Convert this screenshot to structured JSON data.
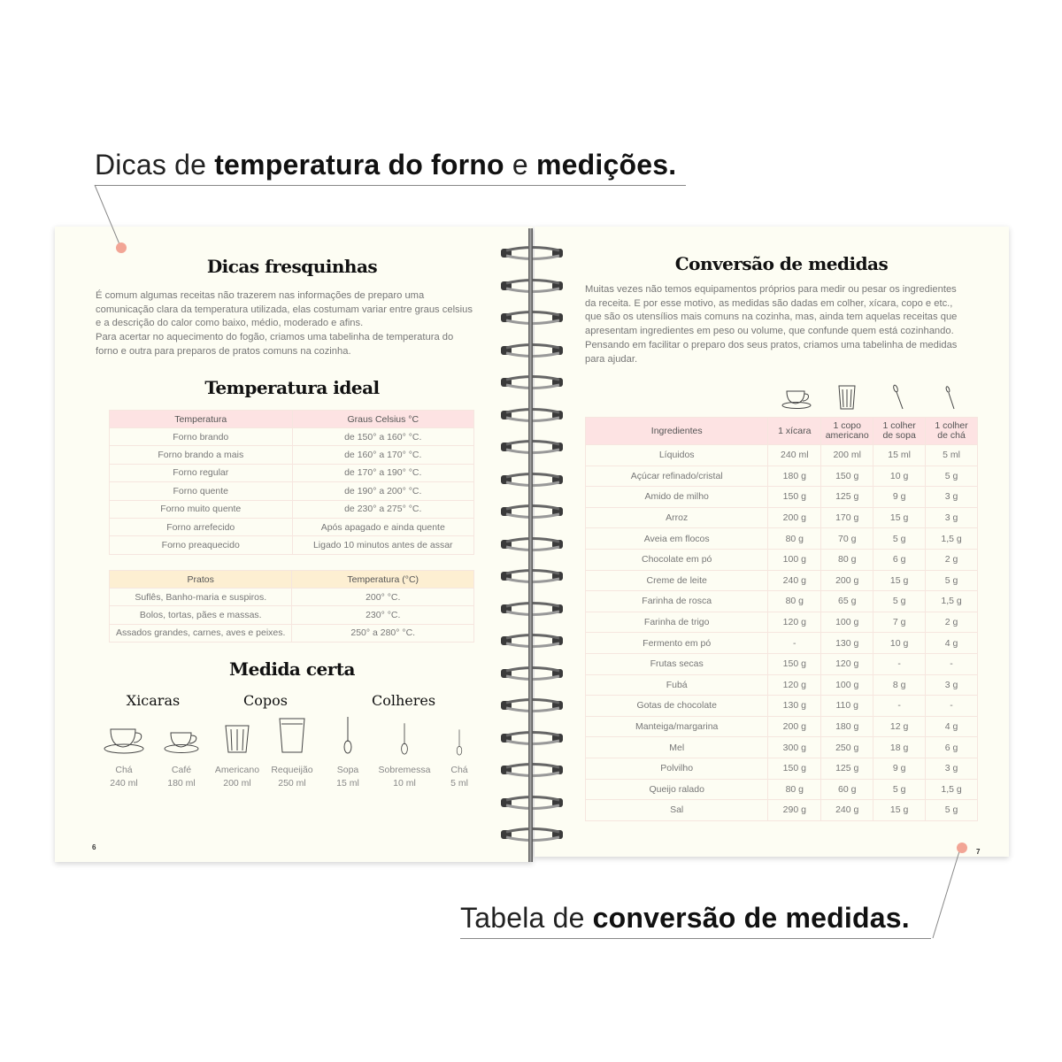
{
  "callouts": {
    "top": {
      "pre": "Dicas de ",
      "b1": "temperatura do forno",
      "mid": " e ",
      "b2": "medições."
    },
    "bottom": {
      "pre": "Tabela de ",
      "b1": "conversão de medidas."
    }
  },
  "colors": {
    "accent_dot": "#f2a595",
    "pink_header": "#fde3e3",
    "yellow_header": "#fdefd2",
    "page": "#fdfdf3"
  },
  "left_page": {
    "title": "Dicas fresquinhas",
    "p1": " É comum algumas receitas não trazerem nas informações de preparo uma comunicação clara da temperatura utilizada, elas costumam variar entre graus celsius e a descrição do calor como baixo, médio, moderado e afins.",
    "p2": " Para acertar no aquecimento do fogão, criamos uma tabelinha de temperatura do forno e outra para preparos de pratos comuns na cozinha.",
    "temp_title": "Temperatura ideal",
    "temp_table": {
      "headers": [
        "Temperatura",
        "Graus Celsius °C"
      ],
      "rows": [
        [
          "Forno brando",
          "de 150° a 160° °C."
        ],
        [
          "Forno brando a mais",
          "de 160° a 170° °C."
        ],
        [
          "Forno regular",
          "de 170° a 190° °C."
        ],
        [
          "Forno quente",
          "de 190° a 200° °C."
        ],
        [
          "Forno muito quente",
          "de 230° a 275° °C."
        ],
        [
          "Forno arrefecido",
          "Após apagado e ainda quente"
        ],
        [
          "Forno preaquecido",
          "Ligado 10 minutos antes de assar"
        ]
      ]
    },
    "dish_table": {
      "headers": [
        "Pratos",
        "Temperatura (°C)"
      ],
      "rows": [
        [
          "Suflês, Banho-maria e suspiros.",
          "200° °C."
        ],
        [
          "Bolos, tortas, pães e massas.",
          "230° °C."
        ],
        [
          "Assados grandes, carnes, aves e peixes.",
          "250° a 280° °C."
        ]
      ]
    },
    "measure_title": "Medida certa",
    "groups": [
      "Xicaras",
      "Copos",
      "Colheres"
    ],
    "items": [
      {
        "icon": "teacup-icon",
        "name": "Chá",
        "value": "240 ml"
      },
      {
        "icon": "coffee-cup-icon",
        "name": "Café",
        "value": "180 ml"
      },
      {
        "icon": "glass-icon",
        "name": "Americano",
        "value": "200 ml"
      },
      {
        "icon": "tall-glass-icon",
        "name": "Requeijão",
        "value": "250 ml"
      },
      {
        "icon": "spoon-icon",
        "name": "Sopa",
        "value": "15 ml"
      },
      {
        "icon": "spoon-icon",
        "name": "Sobremessa",
        "value": "10 ml"
      },
      {
        "icon": "spoon-icon",
        "name": "Chá",
        "value": "5 ml"
      }
    ],
    "page_number": "6"
  },
  "right_page": {
    "title": "Conversão de medidas",
    "p1": " Muitas vezes não temos equipamentos próprios para medir ou pesar os ingredientes da receita. E por esse motivo, as medidas são dadas em colher, xícara, copo e etc., que são os utensílios mais comuns na cozinha, mas, ainda tem aquelas receitas que apresentam ingredientes em peso ou volume, que confunde quem está cozinhando.",
    "p2": "  Pensando em facilitar o preparo dos seus pratos, criamos uma tabelinha de medidas para ajudar.",
    "table": {
      "headers": [
        "Ingredientes",
        "1 xícara",
        "1 copo americano",
        "1 colher de sopa",
        "1 colher de chá"
      ],
      "rows": [
        [
          "Líquidos",
          "240 ml",
          "200 ml",
          "15 ml",
          "5 ml"
        ],
        [
          "Açúcar refinado/cristal",
          "180 g",
          "150 g",
          "10 g",
          "5 g"
        ],
        [
          "Amido de milho",
          "150 g",
          "125 g",
          "9 g",
          "3 g"
        ],
        [
          "Arroz",
          "200 g",
          "170 g",
          "15 g",
          "3 g"
        ],
        [
          "Aveia em flocos",
          "80 g",
          "70 g",
          "5 g",
          "1,5 g"
        ],
        [
          "Chocolate em pó",
          "100 g",
          "80 g",
          "6 g",
          "2 g"
        ],
        [
          "Creme de leite",
          "240 g",
          "200 g",
          "15 g",
          "5 g"
        ],
        [
          "Farinha de rosca",
          "80 g",
          "65 g",
          "5 g",
          "1,5 g"
        ],
        [
          "Farinha de trigo",
          "120 g",
          "100 g",
          "7 g",
          "2 g"
        ],
        [
          "Fermento em pó",
          "-",
          "130 g",
          "10 g",
          "4 g"
        ],
        [
          "Frutas secas",
          "150 g",
          "120 g",
          "-",
          "-"
        ],
        [
          "Fubá",
          "120 g",
          "100 g",
          "8 g",
          "3 g"
        ],
        [
          "Gotas de chocolate",
          "130 g",
          "110 g",
          "-",
          "-"
        ],
        [
          "Manteiga/margarina",
          "200 g",
          "180 g",
          "12 g",
          "4 g"
        ],
        [
          "Mel",
          "300 g",
          "250 g",
          "18 g",
          "6 g"
        ],
        [
          "Polvilho",
          "150 g",
          "125 g",
          "9 g",
          "3 g"
        ],
        [
          "Queijo ralado",
          "80 g",
          "60 g",
          "5 g",
          "1,5 g"
        ],
        [
          "Sal",
          "290 g",
          "240 g",
          "15 g",
          "5 g"
        ]
      ]
    },
    "page_number": "7"
  }
}
